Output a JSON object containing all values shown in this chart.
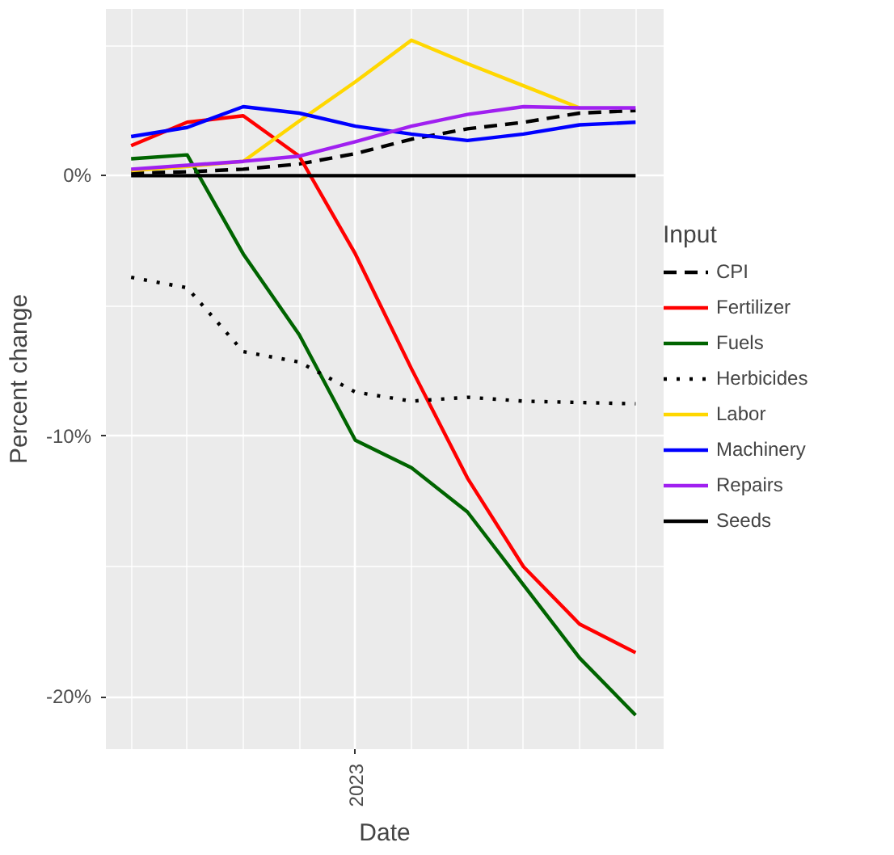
{
  "chart_data": {
    "type": "line",
    "xlabel": "Date",
    "ylabel": "Percent change",
    "legend_title": "Input",
    "legend": "right",
    "grid": true,
    "categories": [
      null,
      null,
      null,
      null,
      "2023",
      null,
      null,
      null,
      null,
      null
    ],
    "ylim": [
      -22.0,
      6.4
    ],
    "yticks": [
      {
        "value": 0,
        "label": "0%"
      },
      {
        "value": -10,
        "label": "-10%"
      },
      {
        "value": -20,
        "label": "-20%"
      }
    ],
    "series": [
      {
        "name": "CPI",
        "color": "#000000",
        "line_style": "dashed",
        "values": [
          0.1,
          0.15,
          0.25,
          0.45,
          0.85,
          1.4,
          1.8,
          2.05,
          2.4,
          2.5
        ]
      },
      {
        "name": "Fertilizer",
        "color": "#ff0000",
        "values": [
          1.15,
          2.05,
          2.3,
          0.75,
          -3.0,
          -7.4,
          -11.6,
          -15.0,
          -17.2,
          -18.3
        ]
      },
      {
        "name": "Fuels",
        "color": "#006400",
        "values": [
          0.65,
          0.8,
          -3.0,
          -6.1,
          -10.15,
          -11.2,
          -12.9,
          -15.7,
          -18.5,
          -20.7
        ]
      },
      {
        "name": "Herbicides",
        "color": "#000000",
        "line_style": "dotted",
        "values": [
          -3.9,
          -4.3,
          -6.75,
          -7.15,
          -8.3,
          -8.65,
          -8.5,
          -8.65,
          -8.7,
          -8.75
        ]
      },
      {
        "name": "Labor",
        "color": "#ffd700",
        "values": [
          0.2,
          0.35,
          0.55,
          2.1,
          3.6,
          5.2,
          4.3,
          3.45,
          2.6,
          null
        ]
      },
      {
        "name": "Machinery",
        "color": "#0000ff",
        "values": [
          1.5,
          1.85,
          2.65,
          2.4,
          1.9,
          1.6,
          1.35,
          1.6,
          1.95,
          2.05
        ]
      },
      {
        "name": "Repairs",
        "color": "#a020f0",
        "values": [
          0.25,
          0.4,
          0.55,
          0.75,
          1.3,
          1.9,
          2.35,
          2.65,
          2.6,
          2.6
        ]
      },
      {
        "name": "Seeds",
        "color": "#000000",
        "values": [
          0,
          0,
          0,
          0,
          0,
          0,
          0,
          0,
          0,
          0
        ]
      }
    ]
  }
}
